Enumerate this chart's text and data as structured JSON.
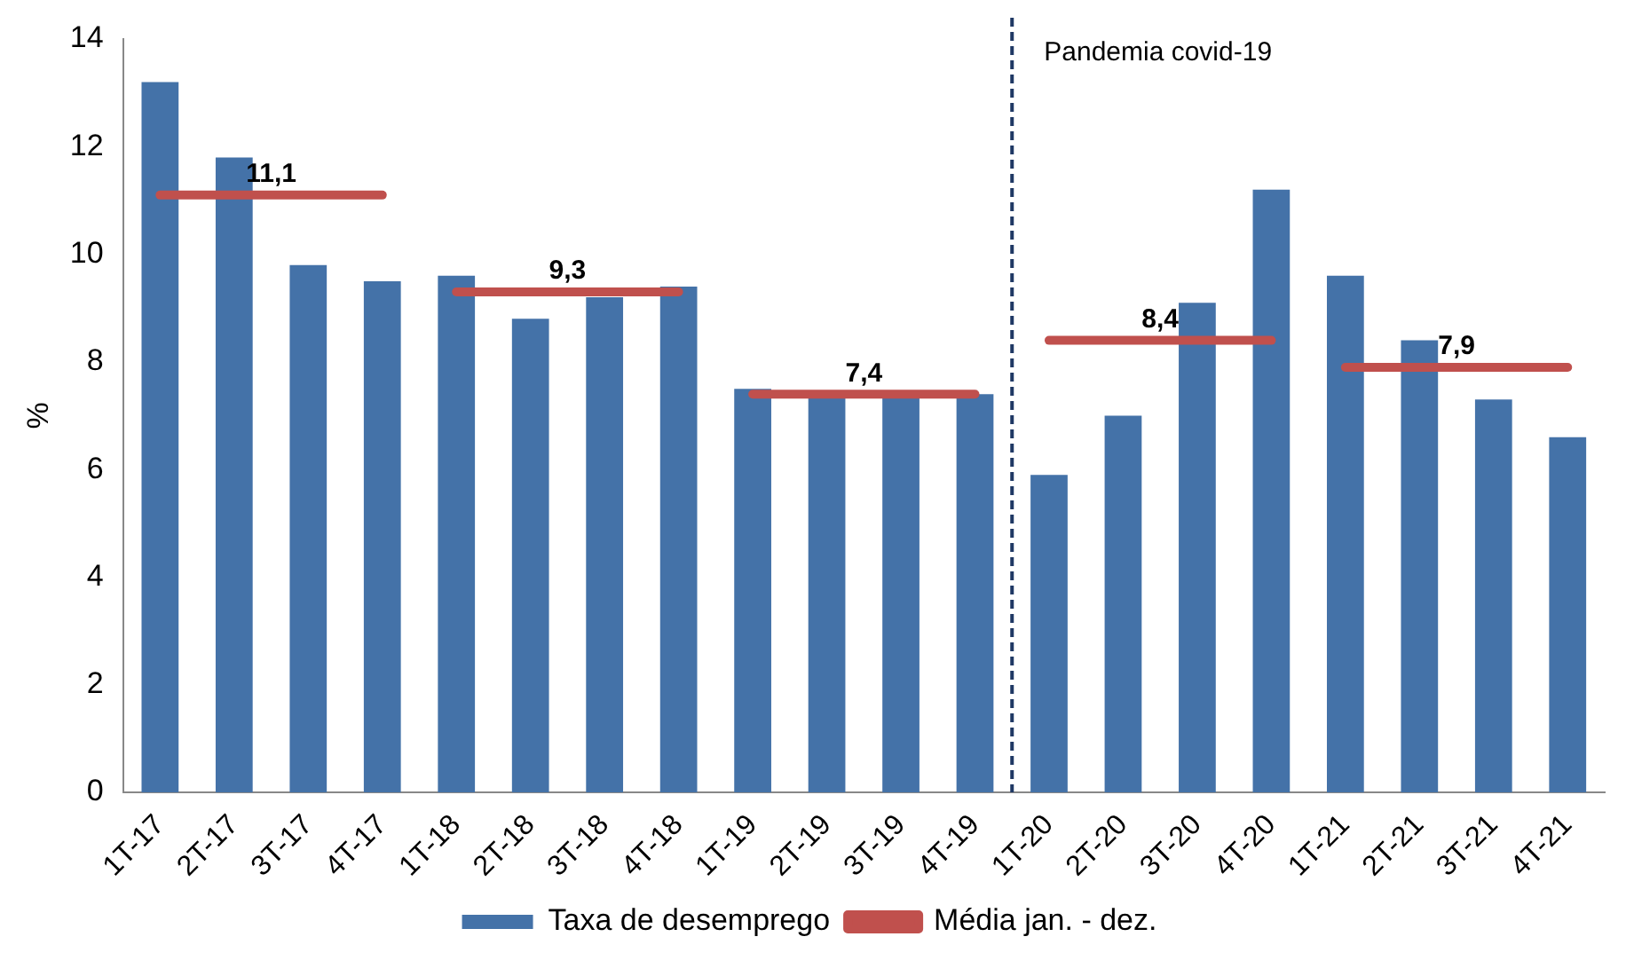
{
  "chart_data": {
    "type": "bar",
    "ylabel": "%",
    "categories": [
      "1T-17",
      "2T-17",
      "3T-17",
      "4T-17",
      "1T-18",
      "2T-18",
      "3T-18",
      "4T-18",
      "1T-19",
      "2T-19",
      "3T-19",
      "4T-19",
      "1T-20",
      "2T-20",
      "3T-20",
      "4T-20",
      "1T-21",
      "2T-21",
      "3T-21",
      "4T-21"
    ],
    "series": [
      {
        "name": "Taxa de desemprego",
        "color": "#4472a8",
        "values": [
          13.2,
          11.8,
          9.8,
          9.5,
          9.6,
          8.8,
          9.2,
          9.4,
          7.5,
          7.4,
          7.4,
          7.4,
          5.9,
          7.0,
          9.1,
          11.2,
          9.6,
          8.4,
          7.3,
          6.6
        ]
      },
      {
        "name": "Média jan. - dez.",
        "type": "line",
        "color": "#c0504d",
        "values": [
          11.1,
          11.1,
          11.1,
          11.1,
          9.3,
          9.3,
          9.3,
          9.3,
          7.4,
          7.4,
          7.4,
          7.4,
          8.4,
          8.4,
          8.4,
          8.4,
          7.9,
          7.9,
          7.9,
          7.9
        ],
        "value_labels": [
          null,
          "11,1",
          null,
          null,
          null,
          "9,3",
          null,
          null,
          null,
          "7,4",
          null,
          null,
          null,
          "8,4",
          null,
          null,
          null,
          "7,9",
          null,
          null
        ]
      }
    ],
    "ylim": [
      0,
      14
    ],
    "yticks": [
      0,
      2,
      4,
      6,
      8,
      10,
      12,
      14
    ],
    "grid": false,
    "legend": "bottom",
    "marker": "none",
    "ref_lines": [
      {
        "axis": "x",
        "value": "1T-20",
        "label": "Pandemia covid-19",
        "color": "#1f3864",
        "line_style": "dashed"
      }
    ]
  }
}
